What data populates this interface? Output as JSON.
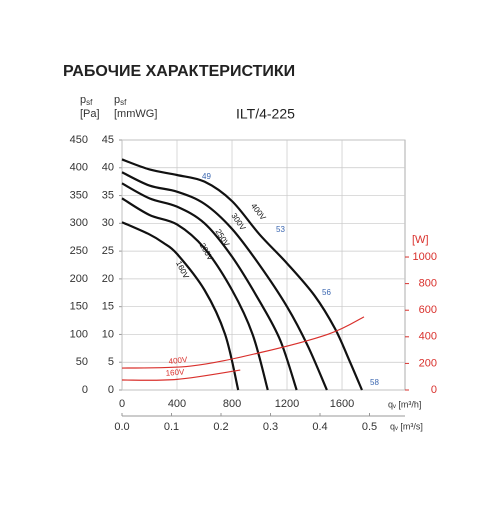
{
  "chart_data": {
    "type": "line",
    "title": "РАБОЧИЕ ХАРАКТЕРИСТИКИ",
    "subtitle": "ILT/4-225",
    "y_label": {
      "symbol": "p",
      "subscript": "sf",
      "unit": "[Pa]"
    },
    "y3_label": {
      "symbol": "p",
      "subscript": "sf",
      "unit": "[mmWG]"
    },
    "y2_label": "[W]",
    "x_label": "qᵥ [m³/h]",
    "x2_label": "qᵥ [m³/s]",
    "xlim": [
      0,
      2058
    ],
    "xticks": [
      0,
      400,
      800,
      1200,
      1600
    ],
    "x2lim": [
      0,
      0.5717
    ],
    "x2ticks": [
      {
        "value": 0,
        "label": "0.0"
      },
      0.1,
      0.2,
      0.3,
      0.4,
      0.5
    ],
    "ylim": [
      0,
      450
    ],
    "yticks": [
      0,
      50,
      100,
      150,
      200,
      250,
      300,
      350,
      400,
      450
    ],
    "y3lim": [
      0,
      45
    ],
    "y3ticks": [
      0,
      5,
      10,
      15,
      20,
      25,
      30,
      35,
      40,
      45
    ],
    "y2lim": [
      0,
      1880
    ],
    "y2ticks": [
      0,
      200,
      400,
      600,
      800,
      1000
    ],
    "grid": true,
    "efficiency_labels": [
      "49",
      "53",
      "56",
      "58"
    ],
    "series": [
      {
        "name": "400V",
        "color": "#111111",
        "x": [
          0,
          200,
          400,
          600,
          800,
          1000,
          1200,
          1400,
          1550,
          1650,
          1745
        ],
        "values": [
          415,
          397,
          387,
          375,
          340,
          280,
          228,
          170,
          110,
          55,
          0
        ]
      },
      {
        "name": "300V",
        "color": "#111111",
        "x": [
          0,
          200,
          400,
          600,
          800,
          1000,
          1200,
          1350,
          1490
        ],
        "values": [
          392,
          368,
          357,
          335,
          290,
          225,
          150,
          80,
          0
        ]
      },
      {
        "name": "250V",
        "color": "#111111",
        "x": [
          0,
          200,
          400,
          600,
          800,
          1000,
          1150,
          1270
        ],
        "values": [
          372,
          345,
          330,
          300,
          240,
          160,
          90,
          0
        ]
      },
      {
        "name": "200V",
        "color": "#111111",
        "x": [
          0,
          200,
          400,
          600,
          800,
          950,
          1060
        ],
        "values": [
          345,
          315,
          298,
          255,
          180,
          100,
          0
        ]
      },
      {
        "name": "160V",
        "color": "#111111",
        "x": [
          0,
          200,
          300,
          400,
          600,
          750,
          845
        ],
        "values": [
          302,
          280,
          265,
          245,
          180,
          100,
          0
        ]
      },
      {
        "name": "400V",
        "color": "#d9302c",
        "axis": "y2",
        "x": [
          0,
          500,
          1000,
          1500,
          1760
        ],
        "values": [
          165,
          180,
          280,
          420,
          550
        ]
      },
      {
        "name": "160V",
        "color": "#d9302c",
        "axis": "y2",
        "x": [
          0,
          400,
          860
        ],
        "values": [
          75,
          80,
          150
        ]
      }
    ]
  }
}
